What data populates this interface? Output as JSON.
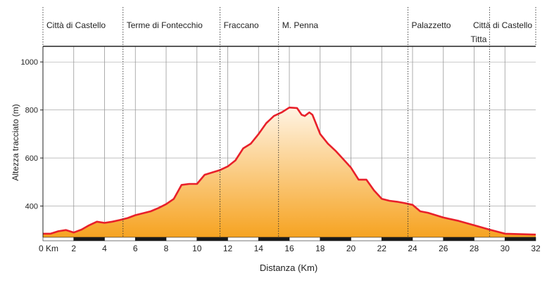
{
  "chart_data": {
    "type": "area",
    "xlabel": "Distanza (Km)",
    "ylabel": "Altezza tracciato (m)",
    "xlim": [
      0,
      32
    ],
    "ylim": [
      270,
      1065
    ],
    "x_ticks": [
      {
        "value": 0,
        "label": "0 Km"
      },
      {
        "value": 2,
        "label": "2"
      },
      {
        "value": 4,
        "label": "4"
      },
      {
        "value": 6,
        "label": "6"
      },
      {
        "value": 8,
        "label": "8"
      },
      {
        "value": 10,
        "label": "10"
      },
      {
        "value": 12,
        "label": "12"
      },
      {
        "value": 14,
        "label": "14"
      },
      {
        "value": 16,
        "label": "16"
      },
      {
        "value": 18,
        "label": "18"
      },
      {
        "value": 20,
        "label": "20"
      },
      {
        "value": 22,
        "label": "22"
      },
      {
        "value": 24,
        "label": "24"
      },
      {
        "value": 26,
        "label": "26"
      },
      {
        "value": 28,
        "label": "28"
      },
      {
        "value": 30,
        "label": "30"
      },
      {
        "value": 32,
        "label": "32"
      }
    ],
    "y_ticks": [
      400,
      600,
      800,
      1000
    ],
    "grid": true,
    "colors": {
      "line": "#e8202a",
      "fill_top": "#fff4e4",
      "fill_bottom": "#f6a321",
      "grid": "#999999",
      "axis": "#222222"
    },
    "waypoints": [
      {
        "name": "Città di Castello",
        "km": 0
      },
      {
        "name": "Terme di Fontecchio",
        "km": 5.2
      },
      {
        "name": "Fraccano",
        "km": 11.5
      },
      {
        "name": "M. Penna",
        "km": 15.3
      },
      {
        "name": "Palazzetto",
        "km": 23.7
      },
      {
        "name": "Titta",
        "km": 29.0
      },
      {
        "name": "Città di Castello",
        "km": 32
      }
    ],
    "profile": {
      "x": [
        0,
        0.5,
        1.0,
        1.5,
        2.0,
        2.5,
        3.0,
        3.5,
        4.0,
        4.5,
        5.0,
        5.5,
        6.0,
        6.5,
        7.0,
        7.5,
        8.0,
        8.5,
        9.0,
        9.5,
        10.0,
        10.5,
        11.0,
        11.5,
        12.0,
        12.5,
        13.0,
        13.5,
        14.0,
        14.5,
        15.0,
        15.5,
        16.0,
        16.5,
        16.8,
        17.0,
        17.3,
        17.5,
        18.0,
        18.5,
        19.0,
        19.5,
        20.0,
        20.5,
        21.0,
        21.5,
        22.0,
        22.5,
        23.0,
        23.5,
        24.0,
        24.5,
        25.0,
        26.0,
        27.0,
        28.0,
        29.0,
        30.0,
        31.0,
        32.0
      ],
      "y": [
        285,
        285,
        295,
        300,
        290,
        302,
        320,
        335,
        330,
        335,
        342,
        350,
        362,
        370,
        378,
        392,
        408,
        430,
        488,
        492,
        492,
        530,
        540,
        550,
        565,
        590,
        640,
        660,
        700,
        745,
        775,
        790,
        810,
        808,
        780,
        775,
        790,
        780,
        700,
        660,
        630,
        595,
        560,
        510,
        510,
        465,
        430,
        422,
        418,
        412,
        405,
        378,
        372,
        352,
        338,
        320,
        302,
        285,
        283,
        281
      ]
    }
  }
}
